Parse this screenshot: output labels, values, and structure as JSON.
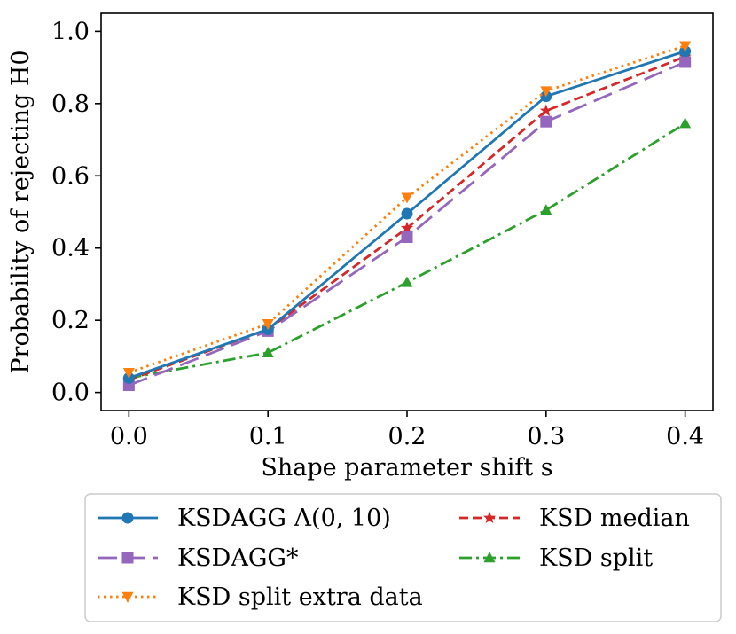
{
  "chart_data": {
    "type": "line",
    "title": "",
    "xlabel": "Shape parameter shift s",
    "ylabel": "Probability of rejecting H0",
    "xlim": [
      -0.02,
      0.42
    ],
    "ylim": [
      -0.05,
      1.05
    ],
    "x": [
      0.0,
      0.1,
      0.2,
      0.3,
      0.4
    ],
    "x_tick_labels": [
      "0.0",
      "0.1",
      "0.2",
      "0.3",
      "0.4"
    ],
    "y_ticks": [
      0.0,
      0.2,
      0.4,
      0.6,
      0.8,
      1.0
    ],
    "y_tick_labels": [
      "0.0",
      "0.2",
      "0.4",
      "0.6",
      "0.8",
      "1.0"
    ],
    "grid": false,
    "legend_position": "bottom-outside",
    "series": [
      {
        "name": "KSDAGG Λ(0, 10)",
        "color": "#1f77b4",
        "marker": "circle",
        "linestyle": "solid",
        "values": [
          0.04,
          0.175,
          0.495,
          0.82,
          0.945
        ]
      },
      {
        "name": "KSDAGG*",
        "color": "#9467bd",
        "marker": "square",
        "linestyle": "longdash",
        "values": [
          0.02,
          0.17,
          0.43,
          0.75,
          0.915
        ]
      },
      {
        "name": "KSD split extra data",
        "color": "#ff7f0e",
        "marker": "triangle-down",
        "linestyle": "dotted",
        "values": [
          0.055,
          0.19,
          0.54,
          0.835,
          0.96
        ]
      },
      {
        "name": "KSD median",
        "color": "#d62728",
        "marker": "star",
        "linestyle": "dashed",
        "values": [
          0.035,
          0.175,
          0.455,
          0.78,
          0.93
        ]
      },
      {
        "name": "KSD split",
        "color": "#2ca02c",
        "marker": "triangle-up",
        "linestyle": "dashdot",
        "values": [
          0.04,
          0.11,
          0.305,
          0.505,
          0.745
        ]
      }
    ]
  }
}
